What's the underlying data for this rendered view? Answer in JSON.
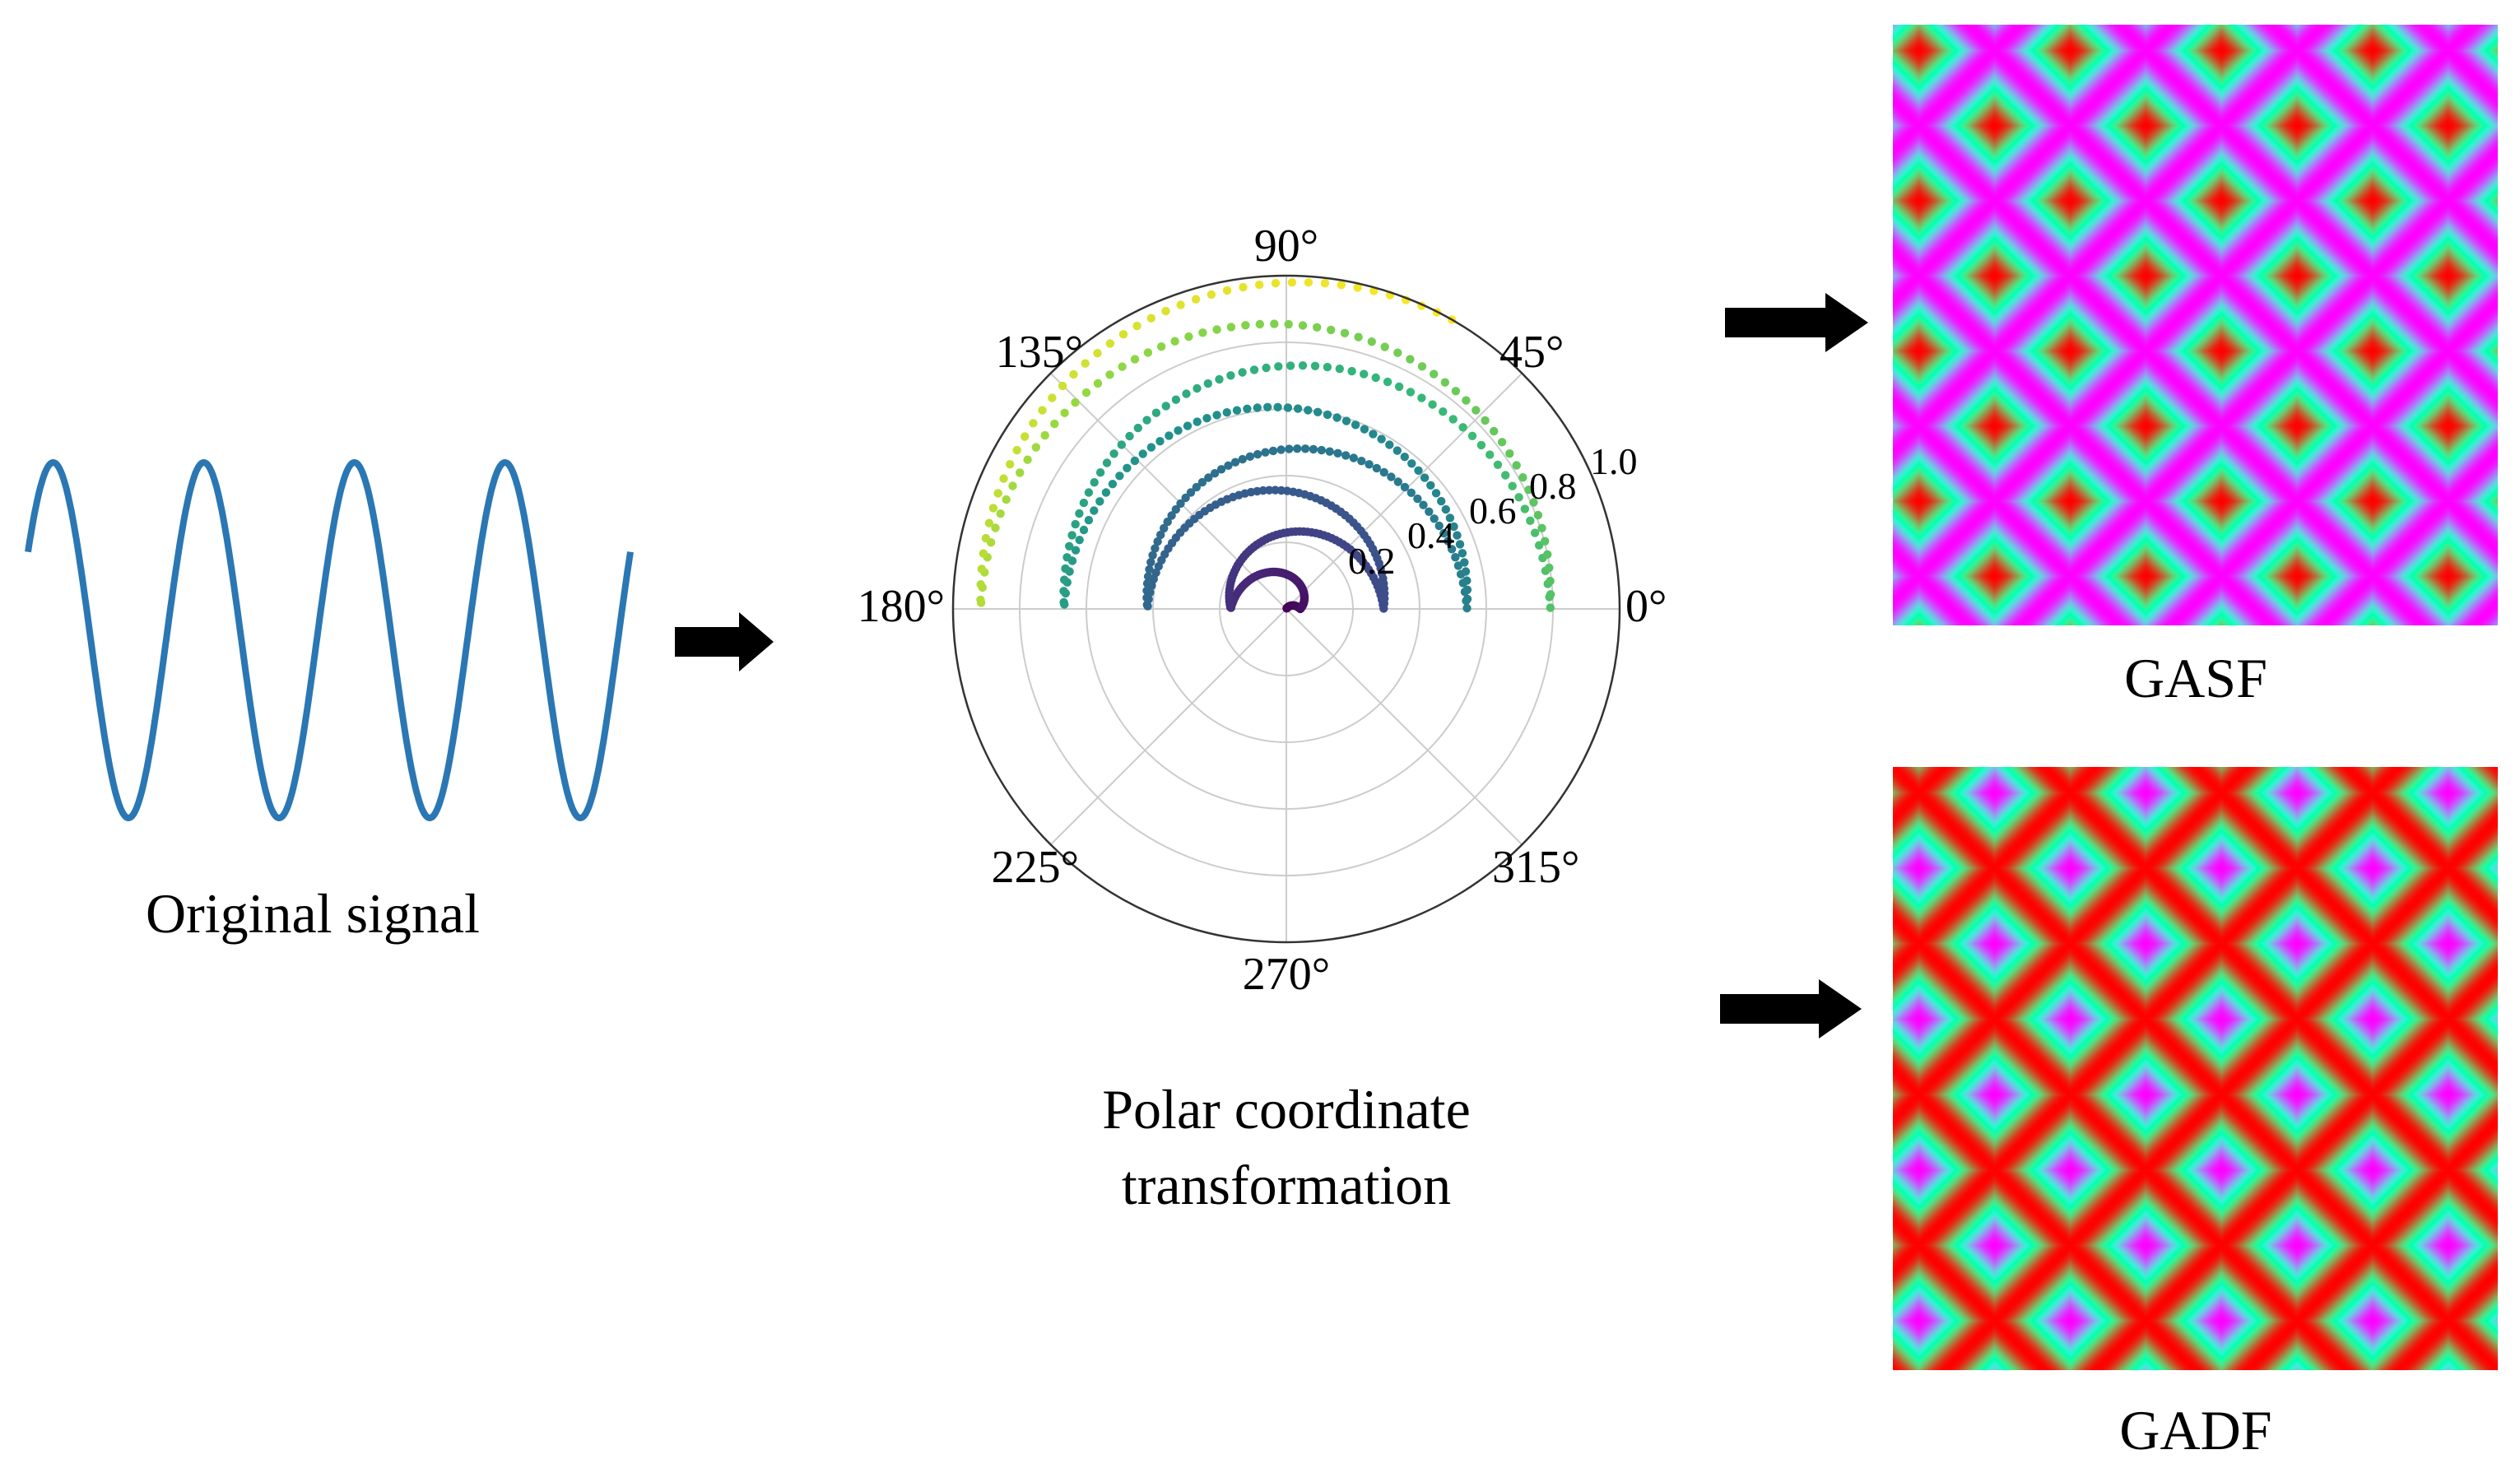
{
  "signal": {
    "caption": "Original signal",
    "color": "#2a77b4",
    "cycles": 4
  },
  "polar": {
    "caption_line1": "Polar coordinate",
    "caption_line2": "transformation",
    "angle_labels": [
      "0°",
      "45°",
      "90°",
      "135°",
      "180°",
      "225°",
      "270°",
      "315°"
    ],
    "radial_labels": [
      "0.2",
      "0.4",
      "0.6",
      "0.8",
      "1.0"
    ],
    "radial_values": [
      0.2,
      0.4,
      0.6,
      0.8,
      1.0
    ],
    "colormap": "viridis"
  },
  "gasf": {
    "caption": "GASF",
    "colormap": "rainbow"
  },
  "gadf": {
    "caption": "GADF",
    "colormap": "rainbow"
  },
  "colors": {
    "arrow": "#000000",
    "grid": "#cccccc"
  }
}
